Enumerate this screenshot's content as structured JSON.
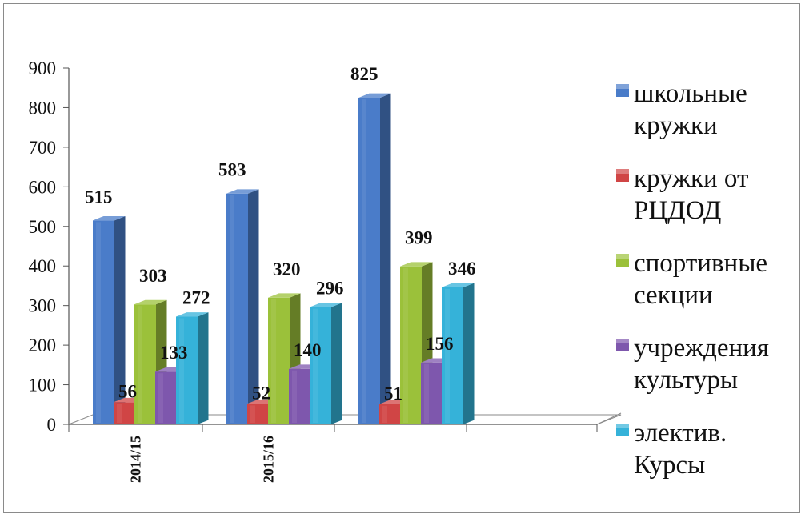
{
  "chart_data": {
    "type": "bar",
    "categories": [
      "2014/15",
      "2015/16",
      ""
    ],
    "series": [
      {
        "name": "школьные кружки",
        "legend_lines": [
          "школьные",
          "кружки"
        ],
        "values": [
          515,
          583,
          825
        ],
        "color": "#4a7cc9"
      },
      {
        "name": "кружки от РЦДОД",
        "legend_lines": [
          "кружки от",
          "РЦДОД"
        ],
        "values": [
          56,
          52,
          51
        ],
        "color": "#d04545"
      },
      {
        "name": "спортивные секции",
        "legend_lines": [
          "спортивные",
          "секции"
        ],
        "values": [
          303,
          320,
          399
        ],
        "color": "#9bc13a"
      },
      {
        "name": "учреждения культуры",
        "legend_lines": [
          "учреждения",
          "культуры"
        ],
        "values": [
          133,
          140,
          156
        ],
        "color": "#7e57ad"
      },
      {
        "name": "электив. Курсы",
        "legend_lines": [
          "электив.",
          "Курсы"
        ],
        "values": [
          272,
          296,
          346
        ],
        "color": "#35b2d9"
      }
    ],
    "yticks": [
      0,
      100,
      200,
      300,
      400,
      500,
      600,
      700,
      800,
      900
    ],
    "ylim": [
      0,
      900
    ],
    "legend_position": "right",
    "grid": false,
    "data_labels": true,
    "style": "3d-column"
  }
}
